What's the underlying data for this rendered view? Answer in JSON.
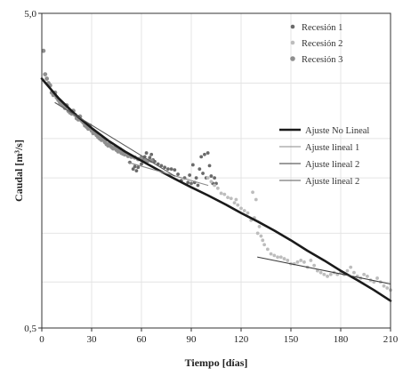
{
  "chart_data": {
    "type": "scatter",
    "xlabel": "Tiempo [días]",
    "ylabel": "Caudal [m³/s]",
    "xlim": [
      0,
      210
    ],
    "ylim": [
      0.5,
      5.0
    ],
    "y_scale": "log",
    "grid": true,
    "legend_position": "right",
    "x_ticks": [
      "0",
      "30",
      "60",
      "90",
      "120",
      "150",
      "180",
      "210"
    ],
    "y_ticks": [
      {
        "value": 0.5,
        "label": "0,5"
      },
      {
        "value": 5.0,
        "label": "5,0"
      }
    ],
    "y_gridlines": [
      0.5,
      0.7,
      1.0,
      1.5,
      2.0,
      3.0,
      5.0
    ],
    "series": [
      {
        "name": "Recesión 1",
        "kind": "points",
        "color": "#6a6a6a",
        "radius": 1.9,
        "x": [
          53,
          55,
          56,
          57,
          58,
          60,
          61,
          62,
          63,
          64,
          65,
          66,
          67,
          68,
          70,
          72,
          74,
          76,
          78,
          80,
          82,
          84,
          86,
          88,
          89,
          90,
          91,
          92,
          93,
          94,
          95,
          96,
          97,
          98,
          99,
          100,
          101,
          102,
          103,
          104,
          105
        ],
        "y": [
          1.68,
          1.6,
          1.63,
          1.58,
          1.62,
          1.66,
          1.72,
          1.75,
          1.8,
          1.7,
          1.74,
          1.78,
          1.71,
          1.69,
          1.66,
          1.64,
          1.62,
          1.6,
          1.6,
          1.59,
          1.54,
          1.47,
          1.5,
          1.45,
          1.53,
          1.44,
          1.65,
          1.45,
          1.5,
          1.42,
          1.6,
          1.75,
          1.55,
          1.78,
          1.5,
          1.8,
          1.64,
          1.52,
          1.44,
          1.5,
          1.44
        ]
      },
      {
        "name": "Recesión 2",
        "kind": "points",
        "color": "#bdbdbd",
        "radius": 1.9,
        "x": [
          100,
          102,
          104,
          106,
          108,
          110,
          112,
          114,
          116,
          117,
          118,
          120,
          122,
          124,
          126,
          127,
          128,
          129,
          130,
          131,
          132,
          133,
          134,
          136,
          138,
          140,
          142,
          144,
          146,
          148,
          150,
          152,
          154,
          156,
          158,
          160,
          162,
          164,
          166,
          168,
          170,
          172,
          174,
          176,
          178,
          180,
          182,
          184,
          186,
          188,
          190,
          192,
          194,
          196,
          198,
          200,
          202,
          204,
          206,
          208,
          210
        ],
        "y": [
          1.5,
          1.46,
          1.42,
          1.39,
          1.34,
          1.33,
          1.3,
          1.29,
          1.25,
          1.28,
          1.23,
          1.2,
          1.18,
          1.16,
          1.1,
          1.35,
          1.12,
          1.28,
          1.0,
          1.05,
          0.98,
          0.95,
          0.92,
          0.89,
          0.86,
          0.85,
          0.84,
          0.84,
          0.83,
          0.82,
          0.8,
          0.8,
          0.81,
          0.82,
          0.81,
          0.78,
          0.82,
          0.79,
          0.76,
          0.75,
          0.74,
          0.73,
          0.74,
          0.75,
          0.74,
          0.75,
          0.74,
          0.76,
          0.78,
          0.75,
          0.73,
          0.72,
          0.74,
          0.73,
          0.71,
          0.7,
          0.72,
          0.7,
          0.68,
          0.67,
          0.66
        ]
      },
      {
        "name": "Recesión 3",
        "kind": "points",
        "color": "#8f8f8f",
        "radius": 2.4,
        "x": [
          1,
          2,
          3,
          4,
          5,
          6,
          7,
          8,
          9,
          10,
          11,
          12,
          13,
          14,
          15,
          16,
          17,
          18,
          19,
          20,
          21,
          22,
          23,
          24,
          25,
          26,
          27,
          28,
          29,
          30,
          31,
          32,
          33,
          34,
          35,
          36,
          37,
          38,
          39,
          40,
          41,
          42,
          43,
          44,
          45,
          46,
          47,
          48,
          49,
          50,
          52,
          54,
          56,
          58,
          60,
          62,
          64,
          66
        ],
        "y": [
          3.8,
          3.2,
          3.1,
          3.0,
          2.95,
          2.8,
          2.75,
          2.8,
          2.7,
          2.65,
          2.6,
          2.58,
          2.55,
          2.5,
          2.55,
          2.45,
          2.42,
          2.4,
          2.45,
          2.38,
          2.32,
          2.3,
          2.35,
          2.28,
          2.25,
          2.2,
          2.18,
          2.15,
          2.2,
          2.12,
          2.08,
          2.1,
          2.05,
          2.02,
          2.0,
          1.98,
          2.0,
          1.95,
          1.92,
          1.9,
          1.93,
          1.88,
          1.86,
          1.87,
          1.84,
          1.82,
          1.85,
          1.8,
          1.79,
          1.78,
          1.76,
          1.75,
          1.74,
          1.72,
          1.74,
          1.7,
          1.7,
          1.7
        ]
      },
      {
        "name": "Ajuste No Lineal",
        "kind": "line",
        "color": "#1a1a1a",
        "width": 2.6,
        "x": [
          0,
          10,
          20,
          30,
          40,
          50,
          60,
          70,
          80,
          90,
          100,
          110,
          120,
          130,
          140,
          150,
          160,
          170,
          180,
          190,
          200,
          210
        ],
        "y": [
          3.1,
          2.69,
          2.39,
          2.16,
          1.97,
          1.82,
          1.7,
          1.59,
          1.49,
          1.4,
          1.32,
          1.24,
          1.16,
          1.09,
          1.02,
          0.95,
          0.88,
          0.82,
          0.76,
          0.71,
          0.66,
          0.61
        ]
      },
      {
        "name": "Ajuste lineal 1",
        "kind": "line",
        "color": "#8a8a8a",
        "width": 1.1,
        "x": [
          52,
          100
        ],
        "y": [
          1.68,
          1.42
        ]
      },
      {
        "name": "Ajuste lineal 2",
        "kind": "line",
        "color": "#3a3a3a",
        "width": 1.1,
        "x": [
          130,
          210
        ],
        "y": [
          0.84,
          0.69
        ]
      },
      {
        "name": "Ajuste lineal 2",
        "kind": "line",
        "color": "#5a5a5a",
        "width": 1.1,
        "x": [
          8,
          80
        ],
        "y": [
          2.6,
          1.52
        ]
      }
    ]
  }
}
